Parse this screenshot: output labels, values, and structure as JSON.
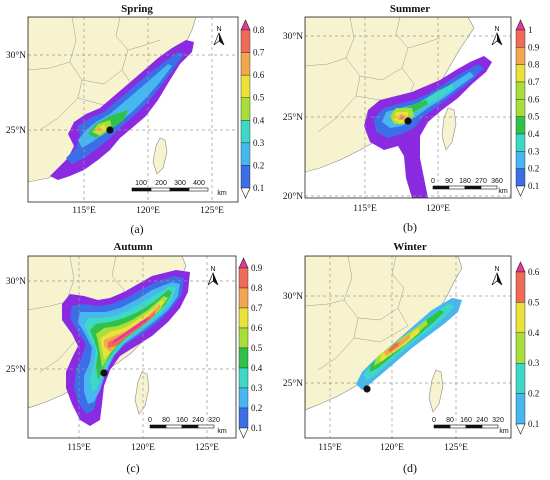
{
  "colors": {
    "land": "#f7f3cf",
    "sea": "#ffffff",
    "border": "#9a9a9a",
    "coast": "#8a8a8a",
    "grid": "#999999",
    "frame": "#222222",
    "site": "#111111",
    "ramp": [
      "#ffffff",
      "#8a2be2",
      "#3c6ee8",
      "#46b7ef",
      "#3fd8c6",
      "#2fc24a",
      "#a8dd3a",
      "#e8e23a",
      "#f2a650",
      "#ef6a57",
      "#e8359a"
    ]
  },
  "panels": [
    {
      "title": "Spring",
      "letter": "(a)",
      "lon_labels": [
        "115°E",
        "120°E",
        "125°E"
      ],
      "lat_labels": [
        "30°N",
        "25°N"
      ],
      "colorbar": [
        "0.8",
        "0.7",
        "0.6",
        "0.5",
        "0.4",
        "0.3",
        "0.2",
        "0.1"
      ],
      "scalebar": [
        "100",
        "200",
        "300",
        "400"
      ],
      "scalebar_unit": "km",
      "north": "N"
    },
    {
      "title": "Summer",
      "letter": "(b)",
      "lon_labels": [
        "115°E",
        "120°E"
      ],
      "lat_labels": [
        "30°N",
        "25°N",
        "20°N"
      ],
      "colorbar": [
        "1",
        "0.9",
        "0.8",
        "0.7",
        "0.6",
        "0.5",
        "0.4",
        "0.3",
        "0.2",
        "0.1"
      ],
      "scalebar": [
        "0",
        "90",
        "180",
        "270",
        "360"
      ],
      "scalebar_unit": "km",
      "north": "N"
    },
    {
      "title": "Autumn",
      "letter": "(c)",
      "lon_labels": [
        "115°E",
        "120°E",
        "125°E"
      ],
      "lat_labels": [
        "30°N",
        "25°N"
      ],
      "colorbar": [
        "0.9",
        "0.8",
        "0.7",
        "0.6",
        "0.5",
        "0.4",
        "0.3",
        "0.2",
        "0.1"
      ],
      "scalebar": [
        "0",
        "80",
        "160",
        "240",
        "320"
      ],
      "scalebar_unit": "km",
      "north": "N"
    },
    {
      "title": "Winter",
      "letter": "(d)",
      "lon_labels": [
        "115°E",
        "120°E",
        "125°E"
      ],
      "lat_labels": [
        "30°N",
        "25°N"
      ],
      "colorbar": [
        "0.6",
        "0.5",
        "0.4",
        "0.3",
        "0.2",
        "0.1"
      ],
      "scalebar": [
        "0",
        "80",
        "160",
        "240",
        "320"
      ],
      "scalebar_unit": "km",
      "north": "N"
    }
  ]
}
